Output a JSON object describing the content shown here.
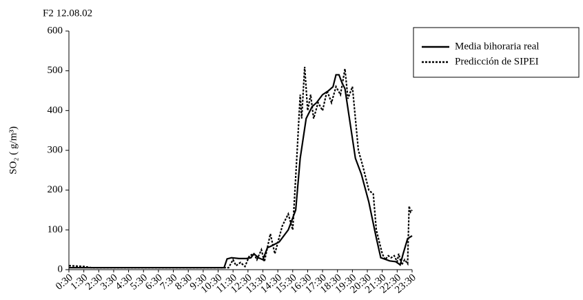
{
  "chart_data": {
    "type": "line",
    "title": "F2 12.08.02",
    "y_label": "SO₂ (  g/m³)",
    "legend_position": "upper right",
    "xlim": [
      0.5,
      23.5
    ],
    "xticks": [
      {
        "value": 0.5,
        "label": "0:30"
      },
      {
        "value": 1.5,
        "label": "1:30"
      },
      {
        "value": 2.5,
        "label": "2:30"
      },
      {
        "value": 3.5,
        "label": "3:30"
      },
      {
        "value": 4.5,
        "label": "4:30"
      },
      {
        "value": 5.5,
        "label": "5:30"
      },
      {
        "value": 6.5,
        "label": "6:30"
      },
      {
        "value": 7.5,
        "label": "7:30"
      },
      {
        "value": 8.5,
        "label": "8:30"
      },
      {
        "value": 9.5,
        "label": "9:30"
      },
      {
        "value": 10.5,
        "label": "10:30"
      },
      {
        "value": 11.5,
        "label": "11:30"
      },
      {
        "value": 12.5,
        "label": "12:30"
      },
      {
        "value": 13.5,
        "label": "13:30"
      },
      {
        "value": 14.5,
        "label": "14:30"
      },
      {
        "value": 15.5,
        "label": "15:30"
      },
      {
        "value": 16.5,
        "label": "16:30"
      },
      {
        "value": 17.5,
        "label": "17:30"
      },
      {
        "value": 18.5,
        "label": "18:30"
      },
      {
        "value": 19.5,
        "label": "19:30"
      },
      {
        "value": 20.5,
        "label": "20:30"
      },
      {
        "value": 21.5,
        "label": "21:30"
      },
      {
        "value": 22.5,
        "label": "22:30"
      },
      {
        "value": 23.5,
        "label": "23:30"
      }
    ],
    "ylim": [
      0,
      600
    ],
    "yticks": [
      0,
      100,
      200,
      300,
      400,
      500,
      600
    ],
    "series": [
      {
        "name": "Media bihoraria real",
        "color": "#000000",
        "dash": "solid",
        "x": [
          0.5,
          10.9,
          11.1,
          11.4,
          11.9,
          12.4,
          12.7,
          12.9,
          13.2,
          13.5,
          13.8,
          14.1,
          14.6,
          15.2,
          15.7,
          16.0,
          16.4,
          16.8,
          17.1,
          17.5,
          17.9,
          18.2,
          18.4,
          18.6,
          18.8,
          19.0,
          19.3,
          19.7,
          20.1,
          20.6,
          21.1,
          21.4,
          22.0,
          22.4,
          22.6,
          22.7,
          22.9,
          23.2,
          23.5
        ],
        "values": [
          5,
          5,
          27,
          30,
          28,
          28,
          30,
          40,
          30,
          25,
          55,
          60,
          70,
          100,
          150,
          280,
          380,
          410,
          420,
          440,
          450,
          460,
          490,
          490,
          470,
          455,
          380,
          280,
          240,
          170,
          80,
          30,
          22,
          20,
          15,
          12,
          40,
          78,
          85
        ]
      },
      {
        "name": "Predicción de SIPEI",
        "color": "#000000",
        "dash": "dotted",
        "x": [
          0.5,
          1.5,
          2.0,
          10.9,
          11.2,
          11.5,
          11.7,
          12.0,
          12.3,
          12.6,
          12.9,
          13.1,
          13.4,
          13.6,
          14.0,
          14.3,
          14.8,
          15.2,
          15.5,
          15.8,
          16.0,
          16.1,
          16.3,
          16.5,
          16.7,
          16.9,
          17.2,
          17.5,
          17.8,
          18.1,
          18.4,
          18.7,
          19.0,
          19.2,
          19.5,
          19.7,
          19.9,
          20.2,
          20.6,
          20.9,
          21.1,
          21.3,
          21.5,
          21.7,
          21.9,
          22.1,
          22.3,
          22.5,
          22.6,
          22.8,
          23.0,
          23.2,
          23.3,
          23.4,
          23.5
        ],
        "values": [
          10,
          8,
          5,
          5,
          5,
          25,
          10,
          18,
          8,
          35,
          40,
          25,
          50,
          20,
          90,
          40,
          110,
          140,
          100,
          300,
          440,
          380,
          510,
          400,
          440,
          380,
          420,
          400,
          450,
          420,
          460,
          440,
          505,
          430,
          460,
          380,
          300,
          260,
          200,
          190,
          100,
          70,
          40,
          25,
          35,
          30,
          35,
          20,
          40,
          12,
          25,
          15,
          160,
          145,
          150
        ]
      }
    ]
  }
}
